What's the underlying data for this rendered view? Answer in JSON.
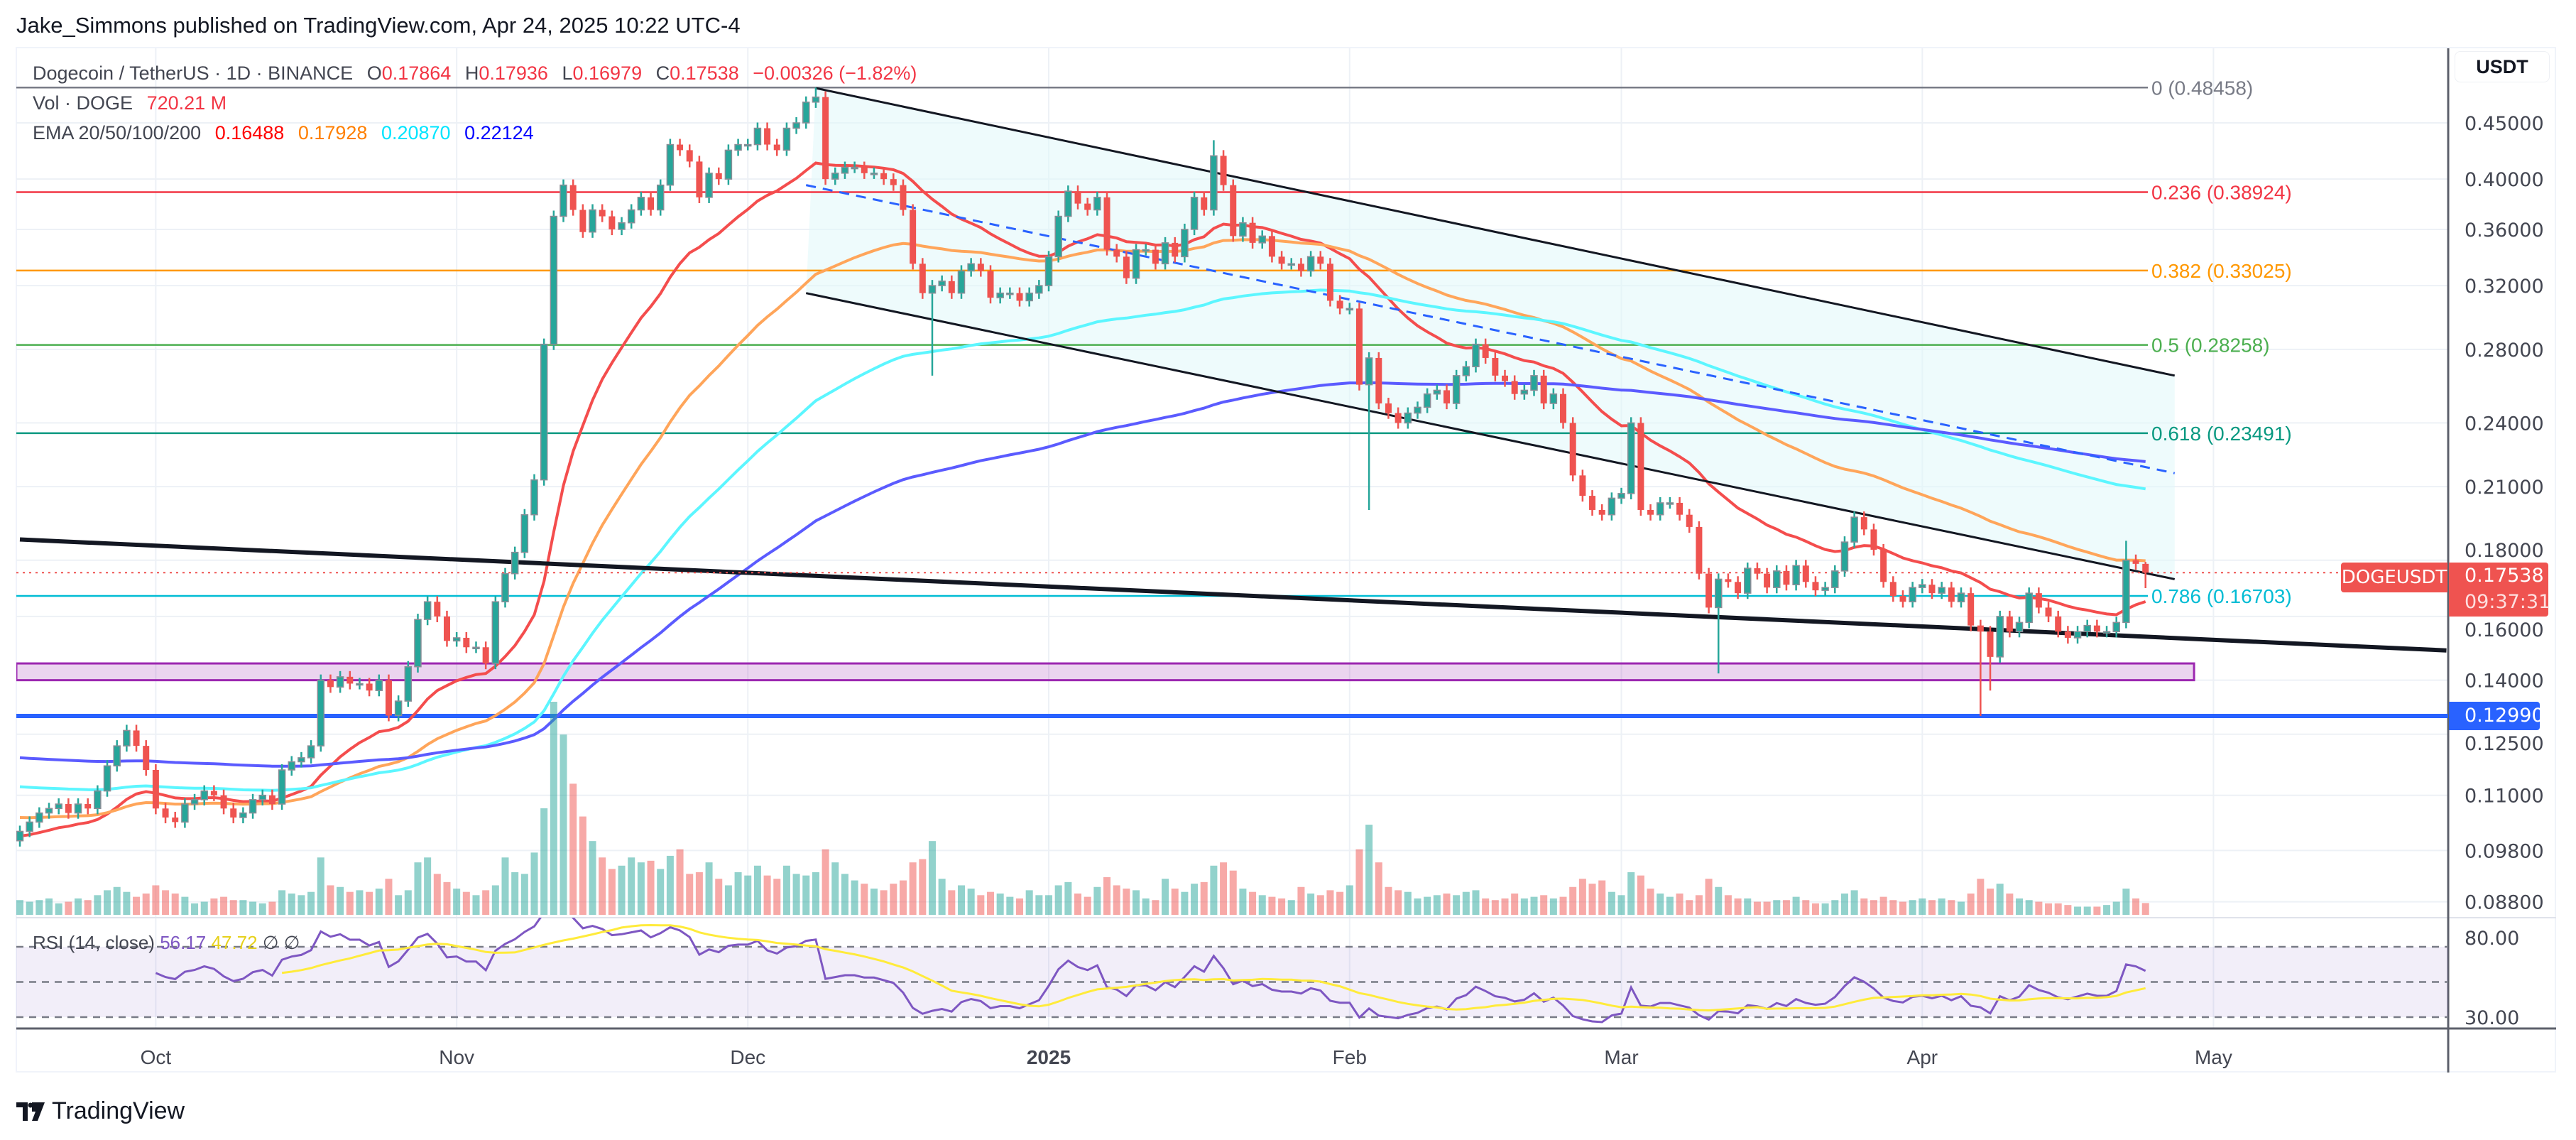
{
  "header": {
    "published": "Jake_Simmons published on TradingView.com, Apr 24, 2025 10:22 UTC-4"
  },
  "legend": {
    "symbol": "Dogecoin / TetherUS · 1D · BINANCE",
    "o_label": "O",
    "o": "0.17864",
    "h_label": "H",
    "h": "0.17936",
    "l_label": "L",
    "l": "0.16979",
    "c_label": "C",
    "c": "0.17538",
    "change": "−0.00326 (−1.82%)",
    "vol_label": "Vol · DOGE",
    "vol": "720.21 M",
    "ema_label": "EMA 20/50/100/200",
    "ema_values": [
      "0.16488",
      "0.17928",
      "0.20870",
      "0.22124"
    ]
  },
  "rsi_legend": {
    "label": "RSI (14, close)",
    "rsi": "56.17",
    "ma": "47.72",
    "n1": "∅",
    "n2": "∅"
  },
  "axis": {
    "currency": "USDT"
  },
  "price_tag": {
    "symbol": "DOGEUSDT",
    "price": "0.17538",
    "countdown": "09:37:31",
    "color": "#ef5350"
  },
  "level_tag": {
    "price": "0.12990",
    "color": "#2962ff"
  },
  "footer": {
    "brand": "TradingView"
  },
  "chart_data": {
    "type": "candlestick",
    "scale": "log",
    "grid": true,
    "y_ticks": [
      "0.45000",
      "0.40000",
      "0.36000",
      "0.32000",
      "0.28000",
      "0.24000",
      "0.21000",
      "0.18000",
      "0.16000",
      "0.14000",
      "0.12500",
      "0.11000",
      "0.09800",
      "0.08800"
    ],
    "x_ticks": [
      {
        "label": "Oct",
        "date": "2024-10-01"
      },
      {
        "label": "Nov",
        "date": "2024-11-01"
      },
      {
        "label": "Dec",
        "date": "2024-12-01"
      },
      {
        "label": "2025",
        "date": "2025-01-01"
      },
      {
        "label": "Feb",
        "date": "2025-02-01"
      },
      {
        "label": "Mar",
        "date": "2025-03-01"
      },
      {
        "label": "Apr",
        "date": "2025-04-01"
      },
      {
        "label": "May",
        "date": "2025-05-01"
      }
    ],
    "candles": [
      {
        "month": "2024-09",
        "first_day": 17,
        "open": 0.1,
        "close": [
          0.102,
          0.104,
          0.106,
          0.107,
          0.108,
          0.106,
          0.108,
          0.107,
          0.111,
          0.117,
          0.122,
          0.126,
          0.122,
          0.116
        ],
        "volume_m": [
          900,
          800,
          900,
          1000,
          700,
          800,
          1000,
          900,
          1200,
          1500,
          1700,
          1400,
          1100,
          1300
        ]
      },
      {
        "month": "2024-10",
        "first_day": 1,
        "close": [
          0.107,
          0.105,
          0.104,
          0.108,
          0.109,
          0.111,
          0.11,
          0.107,
          0.105,
          0.106,
          0.109,
          0.11,
          0.108,
          0.116,
          0.118,
          0.119,
          0.122,
          0.14,
          0.138,
          0.141,
          0.139,
          0.139,
          0.137,
          0.14,
          0.13,
          0.134,
          0.144,
          0.159,
          0.165,
          0.16,
          0.152
        ],
        "volume_m": [
          1800,
          1500,
          1300,
          1100,
          700,
          800,
          1000,
          1100,
          900,
          900,
          800,
          700,
          800,
          1500,
          1300,
          1200,
          1400,
          3500,
          1800,
          1700,
          1400,
          1500,
          1400,
          1600,
          2200,
          1200,
          1500,
          3200,
          3500,
          2500,
          2000
        ]
      },
      {
        "month": "2024-11",
        "first_day": 1,
        "close": [
          0.153,
          0.15,
          0.15,
          0.145,
          0.165,
          0.175,
          0.183,
          0.198,
          0.213,
          0.283,
          0.37,
          0.395,
          0.375,
          0.358,
          0.375,
          0.37,
          0.36,
          0.365,
          0.375,
          0.385,
          0.375,
          0.395,
          0.43,
          0.425,
          0.415,
          0.385,
          0.405,
          0.4,
          0.425,
          0.43
        ],
        "volume_m": [
          1600,
          1400,
          1200,
          1500,
          1800,
          3500,
          2600,
          2500,
          3800,
          6500,
          13000,
          11000,
          8000,
          6000,
          4500,
          3500,
          2800,
          3000,
          3500,
          3200,
          3300,
          2800,
          3600,
          4000,
          2500,
          2600,
          3200,
          2200,
          1800,
          2600
        ]
      },
      {
        "month": "2024-12",
        "first_day": 1,
        "close": [
          0.43,
          0.445,
          0.43,
          0.425,
          0.445,
          0.45,
          0.47,
          0.475,
          0.4,
          0.405,
          0.41,
          0.41,
          0.405,
          0.405,
          0.4,
          0.395,
          0.375,
          0.335,
          0.315,
          0.32,
          0.323,
          0.315,
          0.33,
          0.335,
          0.33,
          0.312,
          0.315,
          0.315,
          0.31,
          0.315,
          0.32
        ],
        "volume_m": [
          2400,
          3000,
          2400,
          2200,
          3000,
          2500,
          2400,
          2600,
          4000,
          3200,
          2500,
          2100,
          1900,
          1600,
          1500,
          1900,
          2100,
          3200,
          3400,
          4500,
          2200,
          1500,
          1800,
          1600,
          1200,
          1400,
          1300,
          1100,
          1000,
          1500,
          1200
        ]
      },
      {
        "month": "2025-01",
        "first_day": 1,
        "close": [
          0.34,
          0.37,
          0.39,
          0.38,
          0.375,
          0.385,
          0.345,
          0.34,
          0.325,
          0.345,
          0.345,
          0.335,
          0.35,
          0.34,
          0.36,
          0.385,
          0.375,
          0.42,
          0.395,
          0.355,
          0.365,
          0.35,
          0.355,
          0.34,
          0.335,
          0.335,
          0.33,
          0.34,
          0.335,
          0.31,
          0.305
        ],
        "volume_m": [
          1200,
          1800,
          2000,
          1300,
          1100,
          1700,
          2300,
          1800,
          1600,
          1500,
          1000,
          900,
          2200,
          1600,
          1400,
          1900,
          2000,
          3000,
          3200,
          2700,
          1600,
          1400,
          1200,
          1100,
          1000,
          900,
          1700,
          1300,
          1200,
          1500,
          1400
        ]
      },
      {
        "month": "2025-02",
        "first_day": 1,
        "close": [
          0.305,
          0.26,
          0.275,
          0.25,
          0.245,
          0.24,
          0.245,
          0.248,
          0.255,
          0.257,
          0.25,
          0.265,
          0.27,
          0.283,
          0.275,
          0.265,
          0.262,
          0.255,
          0.257,
          0.265,
          0.25,
          0.255,
          0.24,
          0.215,
          0.206,
          0.2,
          0.198,
          0.205
        ],
        "volume_m": [
          1800,
          4000,
          5500,
          3200,
          1700,
          1500,
          1400,
          1000,
          1100,
          1200,
          1300,
          1200,
          1400,
          1500,
          1000,
          900,
          1000,
          1300,
          1000,
          1100,
          1200,
          1000,
          1100,
          1700,
          2200,
          1900,
          2100,
          1400
        ]
      },
      {
        "month": "2025-03",
        "first_day": 1,
        "close": [
          0.207,
          0.24,
          0.2,
          0.198,
          0.203,
          0.203,
          0.198,
          0.193,
          0.175,
          0.163,
          0.173,
          0.172,
          0.168,
          0.177,
          0.175,
          0.17,
          0.176,
          0.171,
          0.178,
          0.172,
          0.169,
          0.17,
          0.176,
          0.187,
          0.197,
          0.192,
          0.184,
          0.172,
          0.167,
          0.165,
          0.17
        ],
        "volume_m": [
          1200,
          2600,
          2400,
          1600,
          1300,
          1100,
          1300,
          900,
          1200,
          2200,
          1700,
          1200,
          1000,
          1000,
          800,
          800,
          900,
          900,
          1100,
          900,
          700,
          700,
          900,
          1300,
          1500,
          1000,
          900,
          1100,
          900,
          800,
          900
        ]
      },
      {
        "month": "2025-04",
        "first_day": 1,
        "close": [
          0.171,
          0.168,
          0.17,
          0.165,
          0.168,
          0.157,
          0.155,
          0.147,
          0.16,
          0.155,
          0.158,
          0.168,
          0.163,
          0.16,
          0.155,
          0.153,
          0.155,
          0.157,
          0.155,
          0.155,
          0.158,
          0.18,
          0.17864,
          0.17538
        ],
        "volume_m": [
          1000,
          900,
          1000,
          900,
          800,
          1300,
          2200,
          1600,
          1900,
          1300,
          1000,
          900,
          800,
          700,
          700,
          600,
          500,
          500,
          500,
          600,
          800,
          1600,
          1000,
          720.21
        ]
      }
    ],
    "wick_extremes": [
      {
        "date": "2024-12-08",
        "high": 0.48458
      },
      {
        "date": "2024-12-20",
        "low": 0.265
      },
      {
        "date": "2025-01-18",
        "high": 0.434
      },
      {
        "date": "2025-02-03",
        "low": 0.2
      },
      {
        "date": "2025-03-11",
        "low": 0.142
      },
      {
        "date": "2025-04-07",
        "low": 0.1299
      },
      {
        "date": "2025-04-08",
        "low": 0.137
      },
      {
        "date": "2025-04-22",
        "high": 0.1875
      },
      {
        "date": "2025-04-24",
        "high": 0.17936,
        "low": 0.16979
      }
    ],
    "ema": [
      {
        "period": 20,
        "value": "0.16488",
        "color": "#ff0000",
        "line_color": "#f44d4d",
        "first_value": 0.101
      },
      {
        "period": 50,
        "value": "0.17928",
        "color": "#ff7f00",
        "line_color": "#ffa55a",
        "first_value": 0.105
      },
      {
        "period": 100,
        "value": "0.20870",
        "color": "#00e5ff",
        "line_color": "#5cf6ff",
        "first_value": 0.112
      },
      {
        "period": 200,
        "value": "0.22124",
        "color": "#0000ff",
        "line_color": "#5b5bff",
        "first_value": 0.119
      }
    ],
    "fibonacci": [
      {
        "ratio": "0",
        "price": 0.48458,
        "label": "0 (0.48458)",
        "color": "#787b86"
      },
      {
        "ratio": "0.236",
        "price": 0.38924,
        "label": "0.236 (0.38924)",
        "color": "#f23645"
      },
      {
        "ratio": "0.382",
        "price": 0.33025,
        "label": "0.382 (0.33025)",
        "color": "#ff9800"
      },
      {
        "ratio": "0.5",
        "price": 0.28258,
        "label": "0.5 (0.28258)",
        "color": "#4caf50"
      },
      {
        "ratio": "0.618",
        "price": 0.23491,
        "label": "0.618 (0.23491)",
        "color": "#089981"
      },
      {
        "ratio": "0.786",
        "price": 0.16703,
        "label": "0.786 (0.16703)",
        "color": "#00bcd4"
      }
    ],
    "channel": {
      "upper": [
        {
          "date": "2024-12-08",
          "price": 0.484
        },
        {
          "date": "2025-04-27",
          "price": 0.265
        }
      ],
      "lower": [
        {
          "date": "2024-12-07",
          "price": 0.315
        },
        {
          "date": "2025-04-27",
          "price": 0.173
        }
      ],
      "mid": [
        {
          "date": "2024-12-07",
          "price": 0.395
        },
        {
          "date": "2025-04-27",
          "price": 0.216
        }
      ],
      "fill": "#e0f7fa"
    },
    "trendline": [
      {
        "date": "2024-09-17",
        "price": 0.188
      },
      {
        "date": "2025-05-25",
        "price": 0.149
      }
    ],
    "support_zone": {
      "from_date": "2024-09-17",
      "to_date": "2025-04-29",
      "low": 0.14,
      "high": 0.145,
      "color": "#9c27b0"
    },
    "support_line": {
      "price": 0.1299,
      "color": "#2962ff"
    },
    "rsi": {
      "period": 14,
      "ma_period": 14,
      "levels": [
        70,
        50,
        30
      ],
      "axis_ticks": [
        "80.00",
        "30.00"
      ],
      "line_color": "#7e57c2",
      "ma_color": "#ffeb3b"
    },
    "colors": {
      "up": "#26a69a",
      "down": "#ef5350"
    }
  }
}
